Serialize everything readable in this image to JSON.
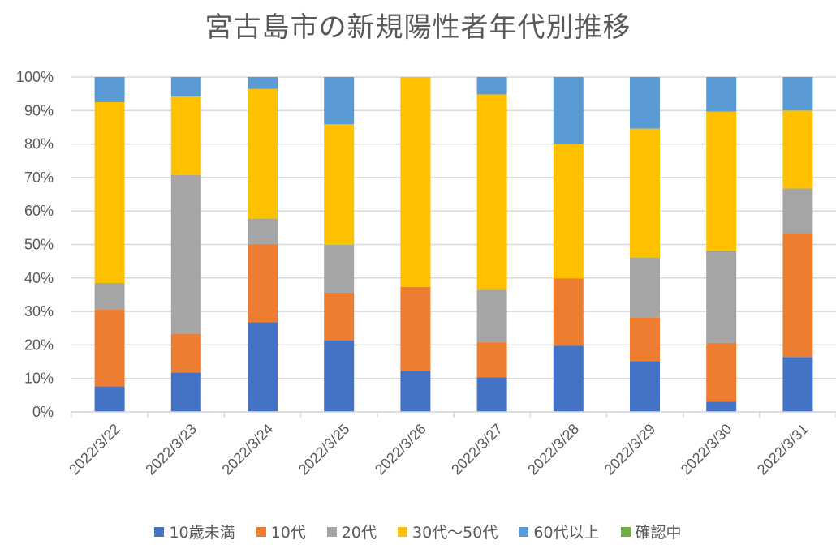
{
  "chart_data": {
    "type": "bar",
    "stacked": true,
    "percent": true,
    "title": "宮古島市の新規陽性者年代別推移",
    "xlabel": "",
    "ylabel": "",
    "ylim": [
      0,
      100
    ],
    "yticks": [
      "0%",
      "10%",
      "20%",
      "30%",
      "40%",
      "50%",
      "60%",
      "70%",
      "80%",
      "90%",
      "100%"
    ],
    "grid": true,
    "legend_position": "bottom",
    "categories": [
      "2022/3/22",
      "2022/3/23",
      "2022/3/24",
      "2022/3/25",
      "2022/3/26",
      "2022/3/27",
      "2022/3/28",
      "2022/3/29",
      "2022/3/30",
      "2022/3/31"
    ],
    "series": [
      {
        "name": "10歳未満",
        "color": "#4472C4",
        "values": [
          7.6,
          11.8,
          26.8,
          21.3,
          12.3,
          10.3,
          19.8,
          15.2,
          3.1,
          16.4
        ]
      },
      {
        "name": "10代",
        "color": "#ED7D31",
        "values": [
          23.0,
          11.6,
          23.3,
          14.3,
          25.0,
          10.5,
          20.1,
          12.9,
          17.5,
          37.0
        ]
      },
      {
        "name": "20代",
        "color": "#A5A5A5",
        "values": [
          7.9,
          47.3,
          7.7,
          14.3,
          0,
          15.7,
          0,
          18.0,
          27.6,
          13.3
        ]
      },
      {
        "name": "30代〜50代",
        "color": "#FFC000",
        "values": [
          54.0,
          23.5,
          38.6,
          36.0,
          62.7,
          58.3,
          40.1,
          38.5,
          41.5,
          23.3
        ]
      },
      {
        "name": "60代以上",
        "color": "#5B9BD5",
        "values": [
          7.5,
          5.8,
          3.6,
          14.1,
          0,
          5.2,
          20.0,
          15.4,
          10.3,
          10.0
        ]
      },
      {
        "name": "確認中",
        "color": "#70AD47",
        "values": [
          0,
          0,
          0,
          0,
          0,
          0,
          0,
          0,
          0,
          0
        ]
      }
    ]
  }
}
